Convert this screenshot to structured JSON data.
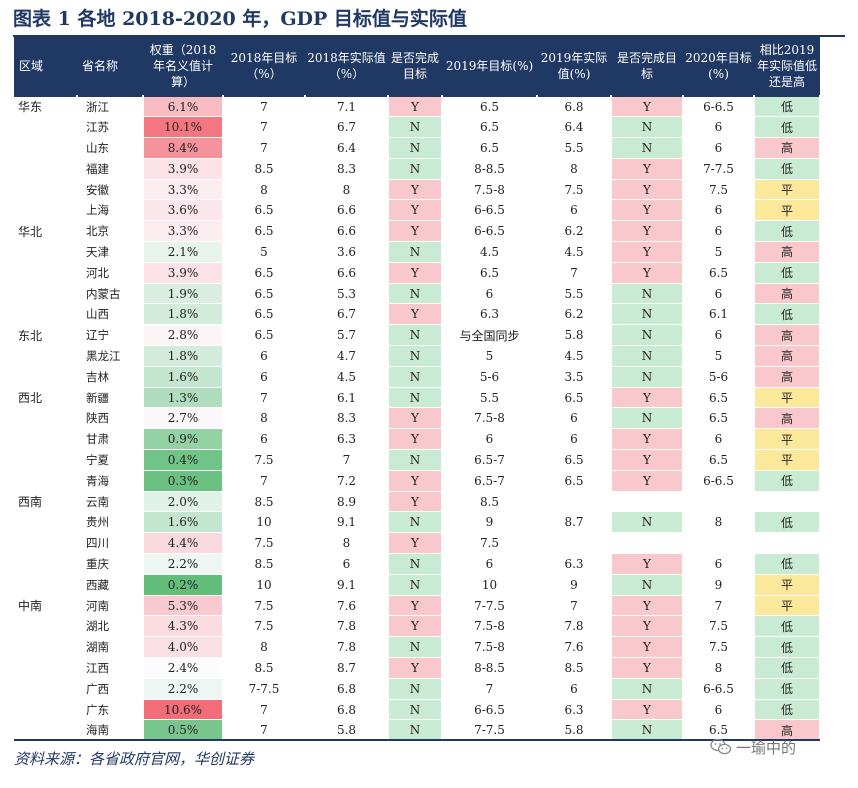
{
  "title": "图表 1    各地 2018-2020 年，GDP 目标值与实际值",
  "headers": [
    "区域",
    "省名称",
    "权重（2018年名义值计算）",
    "2018年目标（%）",
    "2018年实际值（%）",
    "是否完成目标",
    "2019年目标(%)",
    "2019年实际值(%)",
    "是否完成目标",
    "2020年目标(%)",
    "相比2019年实际值低还是高"
  ],
  "rows": [
    {
      "region": "华东",
      "province": "浙江",
      "weight": "6.1%",
      "t2018": "7",
      "a2018": "7.1",
      "c2018": "Y",
      "t2019": "6.5",
      "a2019": "6.8",
      "c2019": "Y",
      "t2020": "6-6.5",
      "cmp": "低"
    },
    {
      "region": "",
      "province": "江苏",
      "weight": "10.1%",
      "t2018": "7",
      "a2018": "6.7",
      "c2018": "N",
      "t2019": "6.5",
      "a2019": "6.4",
      "c2019": "N",
      "t2020": "6",
      "cmp": "低"
    },
    {
      "region": "",
      "province": "山东",
      "weight": "8.4%",
      "t2018": "7",
      "a2018": "6.4",
      "c2018": "N",
      "t2019": "6.5",
      "a2019": "5.5",
      "c2019": "N",
      "t2020": "6",
      "cmp": "高"
    },
    {
      "region": "",
      "province": "福建",
      "weight": "3.9%",
      "t2018": "8.5",
      "a2018": "8.3",
      "c2018": "N",
      "t2019": "8-8.5",
      "a2019": "8",
      "c2019": "Y",
      "t2020": "7-7.5",
      "cmp": "低"
    },
    {
      "region": "",
      "province": "安徽",
      "weight": "3.3%",
      "t2018": "8",
      "a2018": "8",
      "c2018": "Y",
      "t2019": "7.5-8",
      "a2019": "7.5",
      "c2019": "Y",
      "t2020": "7.5",
      "cmp": "平"
    },
    {
      "region": "",
      "province": "上海",
      "weight": "3.6%",
      "t2018": "6.5",
      "a2018": "6.6",
      "c2018": "Y",
      "t2019": "6-6.5",
      "a2019": "6",
      "c2019": "Y",
      "t2020": "6",
      "cmp": "平"
    },
    {
      "region": "华北",
      "province": "北京",
      "weight": "3.3%",
      "t2018": "6.5",
      "a2018": "6.6",
      "c2018": "Y",
      "t2019": "6-6.5",
      "a2019": "6.2",
      "c2019": "Y",
      "t2020": "6",
      "cmp": "低"
    },
    {
      "region": "",
      "province": "天津",
      "weight": "2.1%",
      "t2018": "5",
      "a2018": "3.6",
      "c2018": "N",
      "t2019": "4.5",
      "a2019": "4.5",
      "c2019": "Y",
      "t2020": "5",
      "cmp": "高"
    },
    {
      "region": "",
      "province": "河北",
      "weight": "3.9%",
      "t2018": "6.5",
      "a2018": "6.6",
      "c2018": "Y",
      "t2019": "6.5",
      "a2019": "7",
      "c2019": "Y",
      "t2020": "6.5",
      "cmp": "低"
    },
    {
      "region": "",
      "province": "内蒙古",
      "weight": "1.9%",
      "t2018": "6.5",
      "a2018": "5.3",
      "c2018": "N",
      "t2019": "6",
      "a2019": "5.5",
      "c2019": "N",
      "t2020": "6",
      "cmp": "高"
    },
    {
      "region": "",
      "province": "山西",
      "weight": "1.8%",
      "t2018": "6.5",
      "a2018": "6.7",
      "c2018": "Y",
      "t2019": "6.3",
      "a2019": "6.2",
      "c2019": "N",
      "t2020": "6.1",
      "cmp": "低"
    },
    {
      "region": "东北",
      "province": "辽宁",
      "weight": "2.8%",
      "t2018": "6.5",
      "a2018": "5.7",
      "c2018": "N",
      "t2019": "与全国同步",
      "a2019": "5.8",
      "c2019": "N",
      "t2020": "6",
      "cmp": "高"
    },
    {
      "region": "",
      "province": "黑龙江",
      "weight": "1.8%",
      "t2018": "6",
      "a2018": "4.7",
      "c2018": "N",
      "t2019": "5",
      "a2019": "4.5",
      "c2019": "N",
      "t2020": "5",
      "cmp": "高"
    },
    {
      "region": "",
      "province": "吉林",
      "weight": "1.6%",
      "t2018": "6",
      "a2018": "4.5",
      "c2018": "N",
      "t2019": "5-6",
      "a2019": "3.5",
      "c2019": "N",
      "t2020": "5-6",
      "cmp": "高"
    },
    {
      "region": "西北",
      "province": "新疆",
      "weight": "1.3%",
      "t2018": "7",
      "a2018": "6.1",
      "c2018": "N",
      "t2019": "5.5",
      "a2019": "6.5",
      "c2019": "Y",
      "t2020": "6.5",
      "cmp": "平"
    },
    {
      "region": "",
      "province": "陕西",
      "weight": "2.7%",
      "t2018": "8",
      "a2018": "8.3",
      "c2018": "Y",
      "t2019": "7.5-8",
      "a2019": "6",
      "c2019": "N",
      "t2020": "6.5",
      "cmp": "高"
    },
    {
      "region": "",
      "province": "甘肃",
      "weight": "0.9%",
      "t2018": "6",
      "a2018": "6.3",
      "c2018": "Y",
      "t2019": "6",
      "a2019": "6",
      "c2019": "Y",
      "t2020": "6",
      "cmp": "平"
    },
    {
      "region": "",
      "province": "宁夏",
      "weight": "0.4%",
      "t2018": "7.5",
      "a2018": "7",
      "c2018": "N",
      "t2019": "6.5-7",
      "a2019": "6.5",
      "c2019": "Y",
      "t2020": "6.5",
      "cmp": "平"
    },
    {
      "region": "",
      "province": "青海",
      "weight": "0.3%",
      "t2018": "7",
      "a2018": "7.2",
      "c2018": "Y",
      "t2019": "6.5-7",
      "a2019": "6.5",
      "c2019": "Y",
      "t2020": "6-6.5",
      "cmp": "低"
    },
    {
      "region": "西南",
      "province": "云南",
      "weight": "2.0%",
      "t2018": "8.5",
      "a2018": "8.9",
      "c2018": "Y",
      "t2019": "8.5",
      "a2019": "",
      "c2019": "",
      "t2020": "",
      "cmp": ""
    },
    {
      "region": "",
      "province": "贵州",
      "weight": "1.6%",
      "t2018": "10",
      "a2018": "9.1",
      "c2018": "N",
      "t2019": "9",
      "a2019": "8.7",
      "c2019": "N",
      "t2020": "8",
      "cmp": "低"
    },
    {
      "region": "",
      "province": "四川",
      "weight": "4.4%",
      "t2018": "7.5",
      "a2018": "8",
      "c2018": "Y",
      "t2019": "7.5",
      "a2019": "",
      "c2019": "",
      "t2020": "",
      "cmp": ""
    },
    {
      "region": "",
      "province": "重庆",
      "weight": "2.2%",
      "t2018": "8.5",
      "a2018": "6",
      "c2018": "N",
      "t2019": "6",
      "a2019": "6.3",
      "c2019": "Y",
      "t2020": "6",
      "cmp": "低"
    },
    {
      "region": "",
      "province": "西藏",
      "weight": "0.2%",
      "t2018": "10",
      "a2018": "9.1",
      "c2018": "N",
      "t2019": "10",
      "a2019": "9",
      "c2019": "N",
      "t2020": "9",
      "cmp": "平"
    },
    {
      "region": "中南",
      "province": "河南",
      "weight": "5.3%",
      "t2018": "7.5",
      "a2018": "7.6",
      "c2018": "Y",
      "t2019": "7-7.5",
      "a2019": "7",
      "c2019": "Y",
      "t2020": "7",
      "cmp": "平"
    },
    {
      "region": "",
      "province": "湖北",
      "weight": "4.3%",
      "t2018": "7.5",
      "a2018": "7.8",
      "c2018": "Y",
      "t2019": "7.5-8",
      "a2019": "7.8",
      "c2019": "Y",
      "t2020": "7.5",
      "cmp": "低"
    },
    {
      "region": "",
      "province": "湖南",
      "weight": "4.0%",
      "t2018": "8",
      "a2018": "7.8",
      "c2018": "N",
      "t2019": "7.5-8",
      "a2019": "7.6",
      "c2019": "Y",
      "t2020": "7.5",
      "cmp": "低"
    },
    {
      "region": "",
      "province": "江西",
      "weight": "2.4%",
      "t2018": "8.5",
      "a2018": "8.7",
      "c2018": "Y",
      "t2019": "8-8.5",
      "a2019": "8.5",
      "c2019": "Y",
      "t2020": "8",
      "cmp": "低"
    },
    {
      "region": "",
      "province": "广西",
      "weight": "2.2%",
      "t2018": "7-7.5",
      "a2018": "6.8",
      "c2018": "N",
      "t2019": "7",
      "a2019": "6",
      "c2019": "N",
      "t2020": "6-6.5",
      "cmp": "低"
    },
    {
      "region": "",
      "province": "广东",
      "weight": "10.6%",
      "t2018": "7",
      "a2018": "6.8",
      "c2018": "N",
      "t2019": "6-6.5",
      "a2019": "6.3",
      "c2019": "Y",
      "t2020": "6",
      "cmp": "低"
    },
    {
      "region": "",
      "province": "海南",
      "weight": "0.5%",
      "t2018": "7",
      "a2018": "5.8",
      "c2018": "N",
      "t2019": "7-7.5",
      "a2019": "5.8",
      "c2019": "N",
      "t2020": "6.5",
      "cmp": "高"
    }
  ],
  "footer": "资料来源：各省政府官网，华创证券",
  "watermark": "一瑜中的",
  "colors": {
    "navy": "#1f3864",
    "yes_fill": "#f9c8cc",
    "no_fill": "#c9ead3",
    "low_fill": "#c9ead3",
    "high_fill": "#f9c8cc",
    "flat_fill": "#fce89a",
    "weight_max": "#f26d78",
    "weight_min": "#63be7b",
    "weight_mid": "#fcfcff"
  }
}
